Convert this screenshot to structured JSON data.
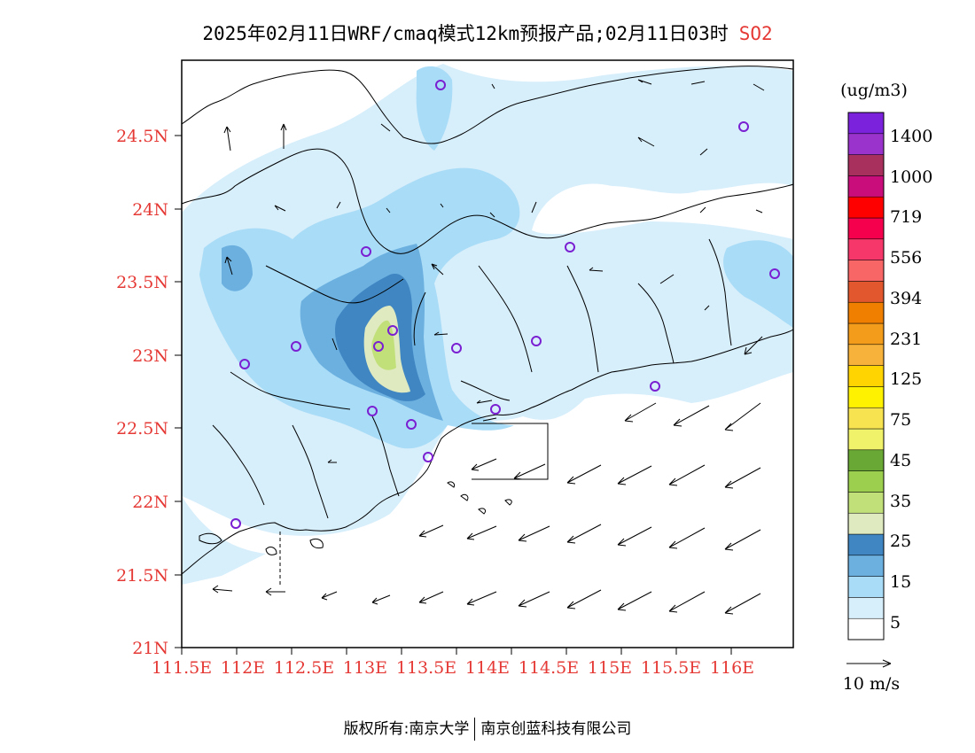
{
  "title": {
    "main": "2025年02月11日WRF/cmaq模式12km预报产品;02月11日03时",
    "species": "SO2"
  },
  "axes": {
    "lat_labels": [
      "24.5N",
      "24N",
      "23.5N",
      "23N",
      "22.5N",
      "22N",
      "21.5N",
      "21N"
    ],
    "lon_labels": [
      "111.5E",
      "112E",
      "112.5E",
      "113E",
      "113.5E",
      "114E",
      "114.5E",
      "115E",
      "115.5E",
      "116E"
    ]
  },
  "legend": {
    "unit": "(ug/m3)",
    "labels": [
      "1400",
      "1000",
      "719",
      "556",
      "394",
      "231",
      "125",
      "75",
      "45",
      "35",
      "25",
      "15",
      "5"
    ],
    "colors": [
      "#ffffff",
      "#d7eefb",
      "#a9dcf7",
      "#6cb0e0",
      "#3f86c2",
      "#dfeac0",
      "#c2e07a",
      "#9ccf4d",
      "#6aa835",
      "#f0f36a",
      "#f7e24f",
      "#fff200",
      "#ffd400",
      "#f6b23a",
      "#f39b1b",
      "#f07f00",
      "#e2572e",
      "#f86666",
      "#f5376a",
      "#f5004c",
      "#ff0000",
      "#c90d7a",
      "#a8305d",
      "#9a33cc",
      "#7b22dd"
    ],
    "wind_scale": "10 m/s"
  },
  "colors": {
    "axis_labels": "#e53935",
    "species": "#e53935",
    "station_marker": "#7a1fd1"
  },
  "footer": {
    "left": "版权所有:南京大学",
    "right": "南京创蓝科技有限公司"
  }
}
